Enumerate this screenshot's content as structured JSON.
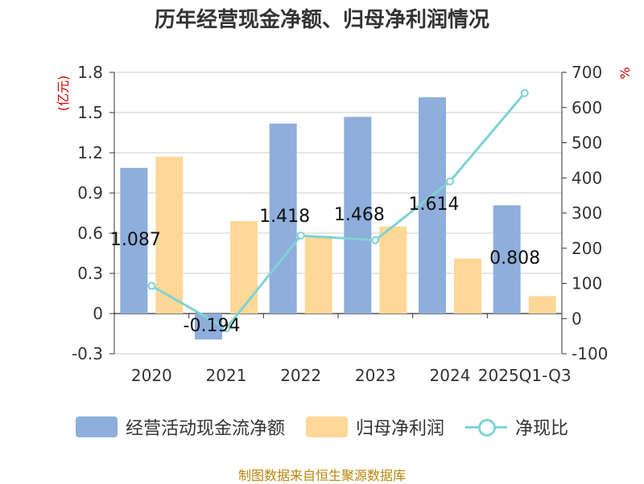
{
  "chart_data": {
    "type": "bar+line",
    "title": "历年经营现金净额、归母净利润情况",
    "categories": [
      "2020",
      "2021",
      "2022",
      "2023",
      "2024",
      "2025Q1-Q3"
    ],
    "series": [
      {
        "name": "经营活动现金流净额",
        "type": "bar",
        "axis": "left",
        "color": "#8eaedb",
        "values": [
          1.087,
          -0.194,
          1.418,
          1.468,
          1.614,
          0.808
        ],
        "labels": [
          "1.087",
          "-0.194",
          "1.418",
          "1.468",
          "1.614",
          "0.808"
        ]
      },
      {
        "name": "归母净利润",
        "type": "bar",
        "axis": "left",
        "color": "#ffd898",
        "values": [
          1.17,
          0.69,
          0.58,
          0.65,
          0.41,
          0.13
        ]
      },
      {
        "name": "净现比",
        "type": "line",
        "axis": "right",
        "color": "#7fd3d4",
        "values": [
          93,
          -28,
          236,
          223,
          390,
          641
        ]
      }
    ],
    "y_left": {
      "label": "(亿元)",
      "min": -0.3,
      "max": 1.8,
      "ticks": [
        "-0.3",
        "0",
        "0.3",
        "0.6",
        "0.9",
        "1.2",
        "1.5",
        "1.8"
      ]
    },
    "y_right": {
      "label": "%",
      "min": -100,
      "max": 700,
      "ticks": [
        "-100",
        "0",
        "100",
        "200",
        "300",
        "400",
        "500",
        "600",
        "700"
      ]
    },
    "grid": true,
    "legend": "bottom",
    "source": "制图数据来自恒生聚源数据库"
  }
}
